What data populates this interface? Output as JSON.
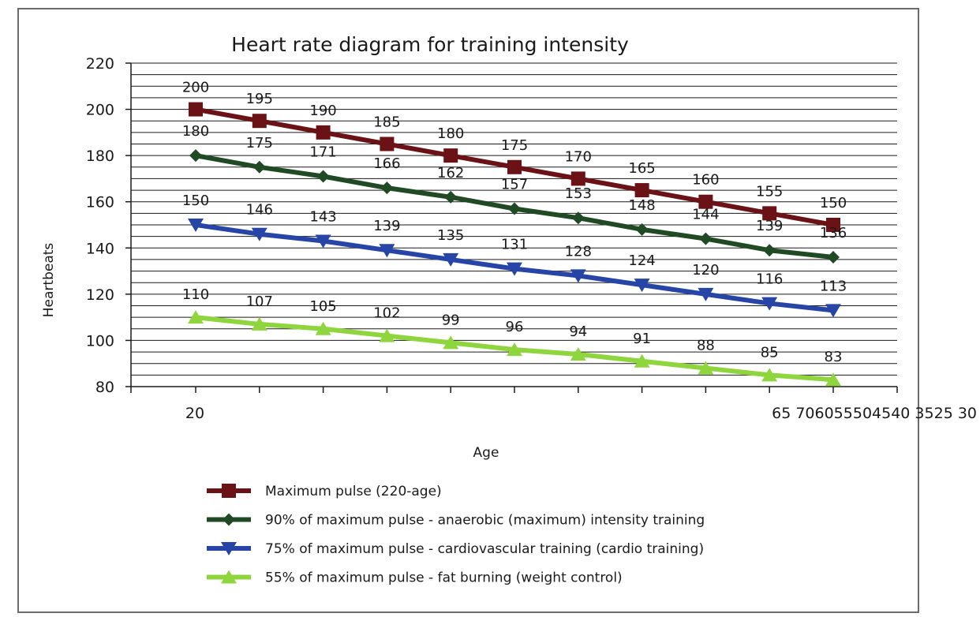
{
  "chart_data": {
    "type": "line",
    "title": "Heart rate diagram for training intensity",
    "xlabel": "Age",
    "ylabel": "Heartbeats",
    "ylim": [
      80,
      220
    ],
    "yticks": [
      "80",
      "100",
      "120",
      "140",
      "160",
      "180",
      "200",
      "220"
    ],
    "x_tick_labels": {
      "left": "20",
      "right": "65 706055504540 3525 30"
    },
    "grid": true,
    "legend_position": "bottom",
    "series": [
      {
        "name": "Maximum pulse (220-age)",
        "color": "#6b1216",
        "marker": "square",
        "values": [
          200,
          195,
          190,
          185,
          180,
          175,
          170,
          165,
          160,
          155,
          150
        ]
      },
      {
        "name": "90% of maximum pulse - anaerobic (maximum) intensity training",
        "color": "#1f4a24",
        "marker": "diamond",
        "values": [
          180,
          175,
          171,
          166,
          162,
          157,
          153,
          148,
          144,
          139,
          136
        ]
      },
      {
        "name": "75% of maximum pulse - cardiovascular training (cardio training)",
        "color": "#2645a6",
        "marker": "triangle-down",
        "values": [
          150,
          146,
          143,
          139,
          135,
          131,
          128,
          124,
          120,
          116,
          113
        ]
      },
      {
        "name": "55% of maximum pulse - fat burning (weight control)",
        "color": "#8fd63e",
        "marker": "triangle-up",
        "values": [
          110,
          107,
          105,
          102,
          99,
          96,
          94,
          91,
          88,
          85,
          83
        ]
      }
    ]
  }
}
